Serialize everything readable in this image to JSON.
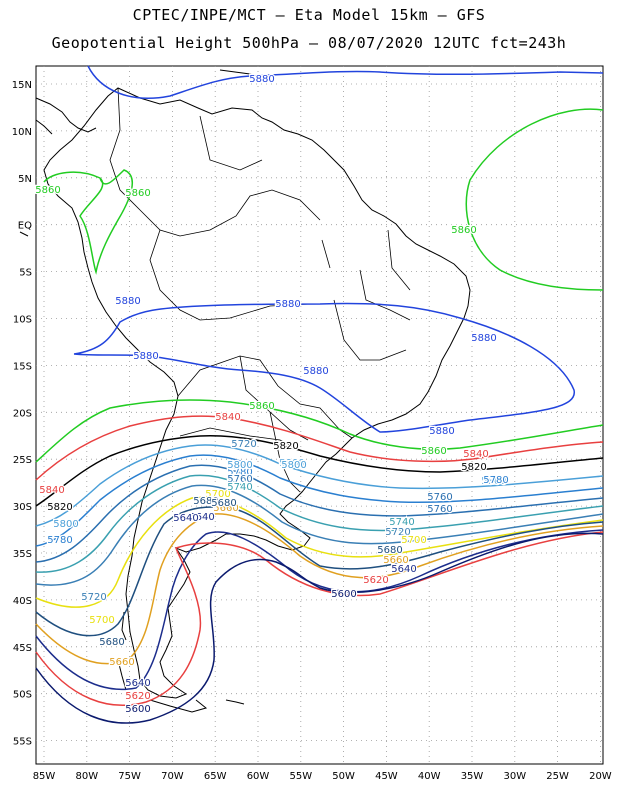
{
  "title_line1": "CPTEC/INPE/MCT –  Eta Model 15km – GFS",
  "title_line2": "Geopotential Height 500hPa – 08/07/2020 12UTC fct=243h",
  "map": {
    "lon_ticks": [
      "85W",
      "80W",
      "75W",
      "70W",
      "65W",
      "60W",
      "55W",
      "50W",
      "45W",
      "40W",
      "35W",
      "30W",
      "25W",
      "20W"
    ],
    "lat_ticks": [
      "15N",
      "10N",
      "5N",
      "EQ",
      "5S",
      "10S",
      "15S",
      "20S",
      "25S",
      "30S",
      "35S",
      "40S",
      "45S",
      "50S",
      "55S"
    ]
  },
  "contours": [
    {
      "value": "5600",
      "color": "#0b1a6e"
    },
    {
      "value": "5640",
      "color": "#1c2d8c"
    },
    {
      "value": "5660",
      "color": "#e0a020"
    },
    {
      "value": "5680",
      "color": "#1f4f7f"
    },
    {
      "value": "5700",
      "color": "#e8e010"
    },
    {
      "value": "5720",
      "color": "#3a7fb5"
    },
    {
      "value": "5740",
      "color": "#3aa0b0"
    },
    {
      "value": "5760",
      "color": "#2a6fb0"
    },
    {
      "value": "5780",
      "color": "#2a7fd0"
    },
    {
      "value": "5800",
      "color": "#4a9fd8"
    },
    {
      "value": "5820",
      "color": "#000000"
    },
    {
      "value": "5840",
      "color": "#e84040"
    },
    {
      "value": "5860",
      "color": "#22cc22"
    },
    {
      "value": "5880",
      "color": "#2244dd"
    }
  ],
  "labels": [
    {
      "text": "5880",
      "c": "#2244dd"
    },
    {
      "text": "5860",
      "c": "#22cc22"
    },
    {
      "text": "5860",
      "c": "#22cc22"
    },
    {
      "text": "5860",
      "c": "#22cc22"
    },
    {
      "text": "5880",
      "c": "#2244dd"
    },
    {
      "text": "5880",
      "c": "#2244dd"
    },
    {
      "text": "5880",
      "c": "#2244dd"
    },
    {
      "text": "5880",
      "c": "#2244dd"
    },
    {
      "text": "5880",
      "c": "#2244dd"
    },
    {
      "text": "5880",
      "c": "#2244dd"
    },
    {
      "text": "5860",
      "c": "#22cc22"
    },
    {
      "text": "5860",
      "c": "#22cc22"
    },
    {
      "text": "5840",
      "c": "#e84040"
    },
    {
      "text": "5840",
      "c": "#e84040"
    },
    {
      "text": "5840",
      "c": "#e84040"
    },
    {
      "text": "5820",
      "c": "#000000"
    },
    {
      "text": "5820",
      "c": "#000000"
    },
    {
      "text": "5820",
      "c": "#000000"
    },
    {
      "text": "5780",
      "c": "#2a7fd0"
    },
    {
      "text": "5800",
      "c": "#4a9fd8"
    },
    {
      "text": "5800",
      "c": "#4a9fd8"
    },
    {
      "text": "5800",
      "c": "#4a9fd8"
    },
    {
      "text": "5780",
      "c": "#2a7fd0"
    },
    {
      "text": "5780",
      "c": "#2a7fd0"
    },
    {
      "text": "5760",
      "c": "#2a6fb0"
    },
    {
      "text": "5760",
      "c": "#2a6fb0"
    },
    {
      "text": "5740",
      "c": "#3aa0b0"
    },
    {
      "text": "5720",
      "c": "#3a7fb5"
    },
    {
      "text": "5720",
      "c": "#3a7fb5"
    },
    {
      "text": "5700",
      "c": "#e8e010"
    },
    {
      "text": "5700",
      "c": "#e8e010"
    },
    {
      "text": "5700",
      "c": "#e8e010"
    },
    {
      "text": "5680",
      "c": "#1f4f7f"
    },
    {
      "text": "5680",
      "c": "#1f4f7f"
    },
    {
      "text": "5680",
      "c": "#1f4f7f"
    },
    {
      "text": "5660",
      "c": "#e0a020"
    },
    {
      "text": "5660",
      "c": "#e0a020"
    },
    {
      "text": "5660",
      "c": "#e0a020"
    },
    {
      "text": "5640",
      "c": "#1c2d8c"
    },
    {
      "text": "5640",
      "c": "#1c2d8c"
    },
    {
      "text": "5640",
      "c": "#1c2d8c"
    },
    {
      "text": "5620",
      "c": "#e84040"
    },
    {
      "text": "5620",
      "c": "#e84040"
    },
    {
      "text": "5600",
      "c": "#0b1a6e"
    },
    {
      "text": "5600",
      "c": "#0b1a6e"
    },
    {
      "text": "5760",
      "c": "#2a6fb0"
    },
    {
      "text": "5740",
      "c": "#3aa0b0"
    },
    {
      "text": "5720",
      "c": "#3a7fb5"
    },
    {
      "text": "5780",
      "c": "#2a7fd0"
    },
    {
      "text": "5800",
      "c": "#4a9fd8"
    },
    {
      "text": "5800",
      "c": "#4a9fd8"
    },
    {
      "text": "5680",
      "c": "#1f4f7f"
    },
    {
      "text": "5640",
      "c": "#1c2d8c"
    }
  ]
}
